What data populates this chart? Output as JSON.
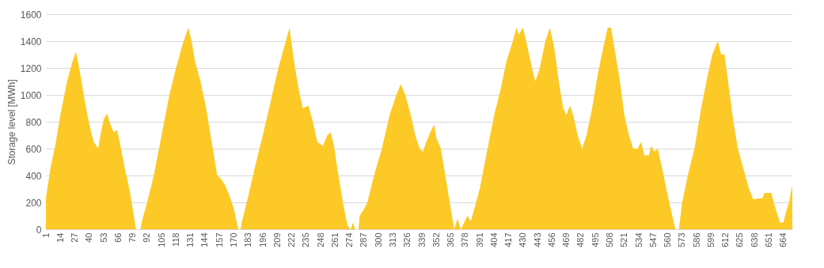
{
  "chart_data": {
    "type": "area",
    "ylabel": "Storage level [MWh]",
    "xlim": [
      1,
      672
    ],
    "ylim": [
      0,
      1600
    ],
    "yticks": [
      0,
      200,
      400,
      600,
      800,
      1000,
      1200,
      1400,
      1600
    ],
    "xticks": [
      1,
      14,
      27,
      40,
      53,
      66,
      79,
      92,
      105,
      118,
      131,
      144,
      157,
      170,
      183,
      196,
      209,
      222,
      235,
      248,
      261,
      274,
      287,
      300,
      313,
      326,
      339,
      352,
      365,
      378,
      391,
      404,
      417,
      430,
      443,
      456,
      469,
      482,
      495,
      508,
      521,
      534,
      547,
      560,
      573,
      586,
      599,
      612,
      625,
      638,
      651,
      664
    ],
    "grid": "y",
    "series": [
      {
        "color": "#fcc926",
        "x": [
          1,
          5,
          10,
          14,
          20,
          25,
          28,
          32,
          36,
          40,
          44,
          48,
          50,
          53,
          56,
          59,
          62,
          65,
          68,
          72,
          76,
          80,
          82,
          86,
          87,
          92,
          98,
          105,
          112,
          118,
          124,
          129,
          132,
          135,
          140,
          145,
          150,
          155,
          158,
          162,
          166,
          170,
          174,
          176,
          177,
          183,
          190,
          196,
          203,
          210,
          215,
          220,
          224,
          228,
          232,
          237,
          241,
          245,
          250,
          254,
          257,
          260,
          263,
          268,
          272,
          275,
          277,
          279,
          282,
          283,
          287,
          290,
          296,
          303,
          310,
          316,
          320,
          324,
          329,
          333,
          337,
          340,
          343,
          347,
          350,
          352,
          356,
          360,
          365,
          368,
          371,
          374,
          377,
          380,
          383,
          386,
          391,
          398,
          404,
          410,
          415,
          420,
          424,
          426,
          430,
          434,
          438,
          441,
          445,
          450,
          454,
          458,
          462,
          466,
          469,
          472,
          475,
          479,
          483,
          487,
          492,
          497,
          502,
          506,
          509,
          513,
          517,
          521,
          525,
          529,
          533,
          536,
          539,
          543,
          545,
          548,
          551,
          555,
          560,
          564,
          567,
          570,
          573,
          578,
          584,
          590,
          596,
          600,
          605,
          608,
          611,
          615,
          619,
          623,
          628,
          633,
          637,
          641,
          645,
          647,
          651,
          653,
          657,
          661,
          664,
          666,
          669,
          672
        ],
        "values": [
          230,
          450,
          650,
          850,
          1100,
          1250,
          1320,
          1150,
          950,
          780,
          650,
          600,
          700,
          820,
          860,
          780,
          720,
          740,
          620,
          450,
          300,
          100,
          0,
          0,
          50,
          200,
          400,
          700,
          1000,
          1200,
          1380,
          1500,
          1400,
          1250,
          1100,
          900,
          650,
          400,
          380,
          330,
          250,
          150,
          0,
          0,
          50,
          250,
          500,
          700,
          950,
          1200,
          1350,
          1500,
          1250,
          1050,
          900,
          920,
          800,
          650,
          620,
          700,
          720,
          620,
          450,
          200,
          30,
          0,
          50,
          0,
          0,
          100,
          150,
          200,
          400,
          600,
          850,
          1000,
          1080,
          1000,
          850,
          700,
          600,
          580,
          650,
          730,
          780,
          680,
          600,
          400,
          150,
          0,
          80,
          0,
          50,
          100,
          60,
          150,
          300,
          600,
          850,
          1050,
          1250,
          1380,
          1500,
          1450,
          1500,
          1350,
          1200,
          1100,
          1200,
          1400,
          1500,
          1350,
          1100,
          900,
          850,
          920,
          850,
          700,
          600,
          700,
          900,
          1150,
          1350,
          1500,
          1500,
          1300,
          1100,
          850,
          700,
          600,
          600,
          650,
          550,
          550,
          620,
          580,
          600,
          450,
          250,
          100,
          0,
          0,
          200,
          400,
          600,
          900,
          1150,
          1300,
          1400,
          1300,
          1300,
          1050,
          800,
          600,
          450,
          300,
          220,
          230,
          230,
          270,
          270,
          270,
          150,
          50,
          50,
          120,
          200,
          330
        ]
      }
    ]
  }
}
